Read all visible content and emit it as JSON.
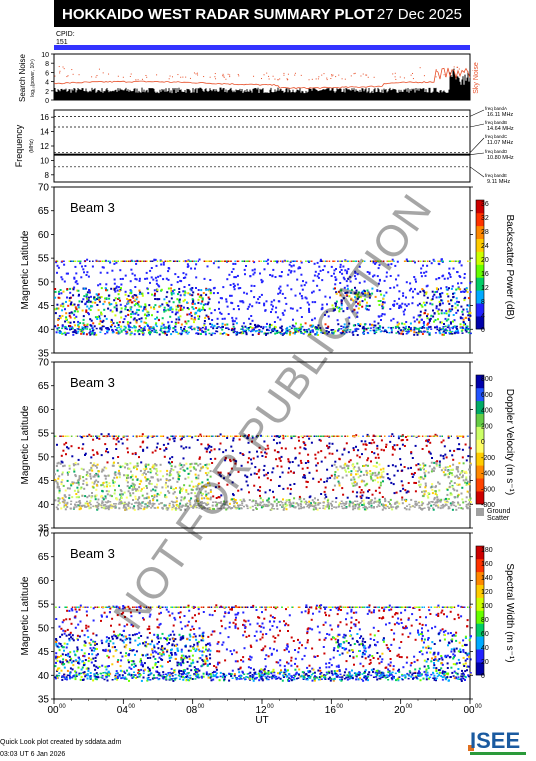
{
  "header": {
    "title": "HOKKAIDO WEST RADAR SUMMARY PLOT",
    "date": "27 Dec 2025"
  },
  "cpid": {
    "label": "CPID:",
    "value": "151"
  },
  "x_axis": {
    "label": "UT",
    "ticks": [
      "00",
      "04",
      "08",
      "12",
      "16",
      "20",
      "00"
    ],
    "tick_superscript": "00"
  },
  "noise_panel": {
    "ylabel": "Search Noise",
    "ylabel_sub": "log₁₀(power, 10⁶)",
    "yticks": [
      "0",
      "2",
      "4",
      "6",
      "8",
      "10"
    ],
    "sky_noise_label": "Sky Noise"
  },
  "freq_panel": {
    "ylabel": "Frequency",
    "ylabel_unit": "(MHz)",
    "yticks": [
      "8",
      "10",
      "12",
      "14",
      "16"
    ],
    "bands": [
      {
        "name": "freq bandA",
        "value": "16.11 MHz"
      },
      {
        "name": "freq bandB",
        "value": "14.64 MHz"
      },
      {
        "name": "freq bandC",
        "value": "11.07 MHz"
      },
      {
        "name": "freq bandD",
        "value": "10.80 MHz"
      },
      {
        "name": "freq bandE",
        "value": "9.11 MHz"
      }
    ]
  },
  "panels": [
    {
      "beam": "Beam  3",
      "ylabel": "Magnetic Latitude",
      "cbar_label": "Backscatter Power (dB)",
      "cbar_ticks": [
        "0",
        "4",
        "8",
        "12",
        "16",
        "20",
        "24",
        "28",
        "32",
        "36"
      ]
    },
    {
      "beam": "Beam  3",
      "ylabel": "Magnetic Latitude",
      "cbar_label": "Doppler Velocity (m s⁻¹)",
      "cbar_ticks": [
        "-800",
        "-600",
        "-400",
        "-200",
        "0",
        "200",
        "400",
        "600",
        "800"
      ],
      "ground_label": "Ground",
      "ground_label2": "Scatter"
    },
    {
      "beam": "Beam  3",
      "ylabel": "Magnetic Latitude",
      "cbar_label": "Spectral Width (m s⁻¹)",
      "cbar_ticks": [
        "0",
        "20",
        "40",
        "60",
        "80",
        "100",
        "120",
        "140",
        "160",
        "180"
      ]
    }
  ],
  "lat_ticks": [
    "35",
    "40",
    "45",
    "50",
    "55",
    "60",
    "65",
    "70"
  ],
  "watermark": "NOT FOR PUBLICATION",
  "footer": {
    "line1": "Quick Look plot created by sddata.adm",
    "line2": "03:03 UT  6 Jan 2026"
  },
  "logo": "ISEE",
  "colors": {
    "cpid_bar": "#3333ff",
    "sky_noise": "#e8502a",
    "ground_scatter": "#a0a0a0"
  },
  "chart_data": {
    "type": "heatmap",
    "x_range_ut_hours": [
      0,
      24
    ],
    "lat_range": [
      35,
      70
    ],
    "echo_lat_range": [
      39,
      55
    ],
    "freq_bands_mhz": [
      16.11,
      14.64,
      11.07,
      10.8,
      9.11
    ]
  }
}
